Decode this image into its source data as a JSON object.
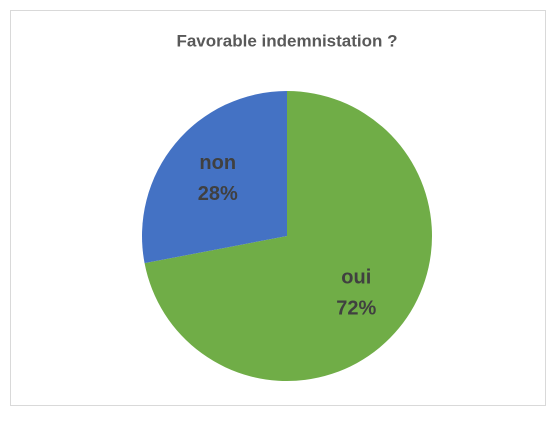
{
  "chart_data": {
    "type": "pie",
    "title": "Favorable indemnistation ?",
    "categories": [
      "oui",
      "non"
    ],
    "values": [
      72,
      28
    ],
    "value_labels": [
      "72%",
      "28%"
    ],
    "colors": [
      "#70ad47",
      "#4472c4"
    ]
  }
}
